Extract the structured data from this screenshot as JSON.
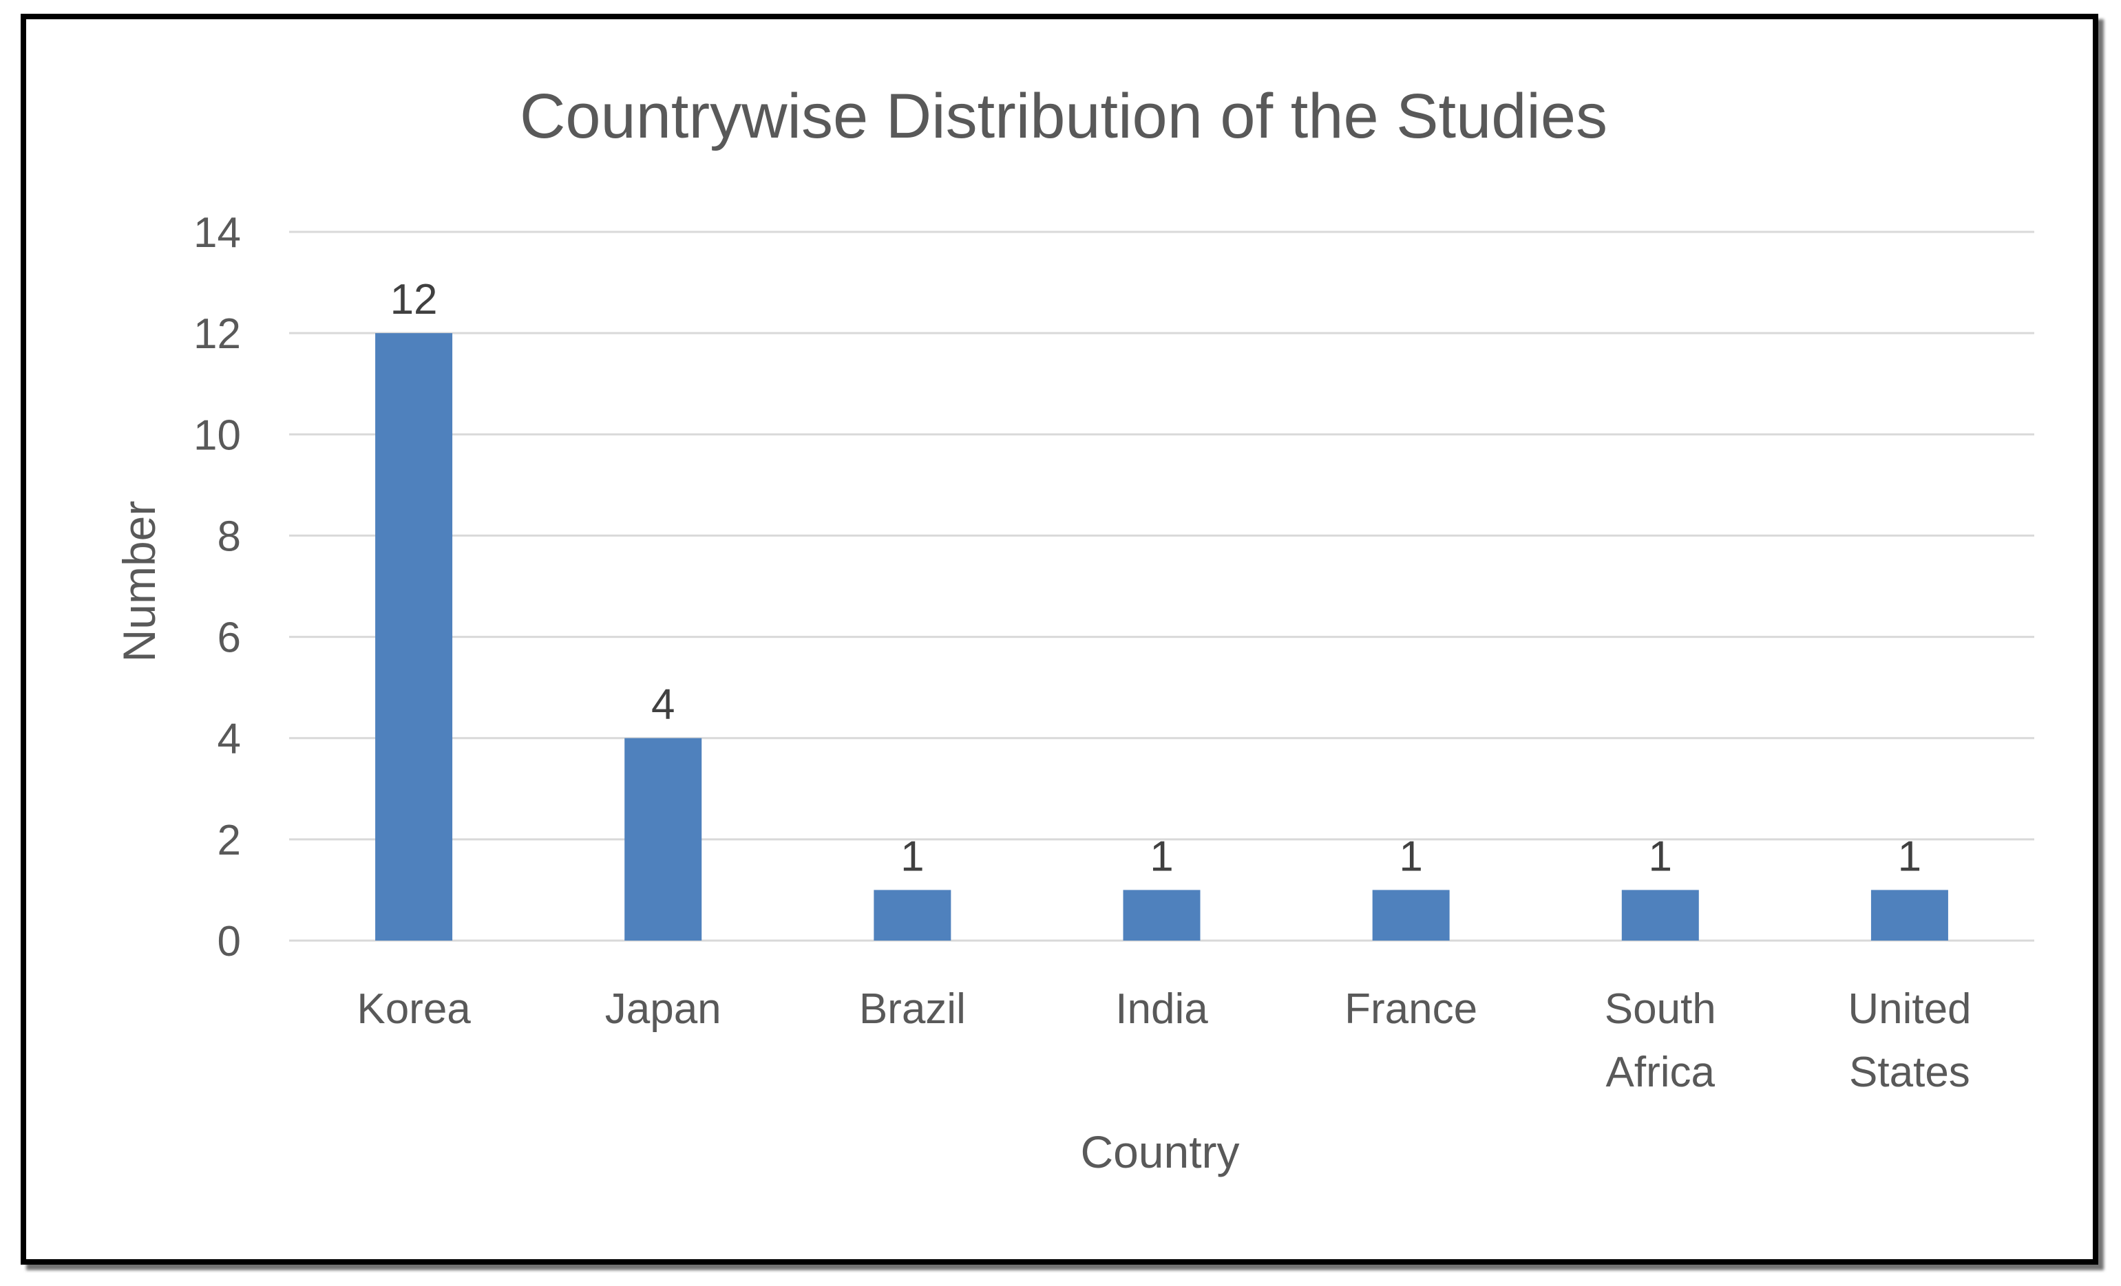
{
  "chart_data": {
    "type": "bar",
    "title": "Countrywise Distribution of the Studies",
    "xlabel": "Country",
    "ylabel": "Number",
    "categories": [
      "Korea",
      "Japan",
      "Brazil",
      "India",
      "France",
      "South Africa",
      "United States"
    ],
    "category_lines": [
      [
        "Korea"
      ],
      [
        "Japan"
      ],
      [
        "Brazil"
      ],
      [
        "India"
      ],
      [
        "France"
      ],
      [
        "South",
        "Africa"
      ],
      [
        "United",
        "States"
      ]
    ],
    "values": [
      12,
      4,
      1,
      1,
      1,
      1,
      1
    ],
    "data_labels": [
      "12",
      "4",
      "1",
      "1",
      "1",
      "1",
      "1"
    ],
    "ylim": [
      0,
      14
    ],
    "yticks": [
      0,
      2,
      4,
      6,
      8,
      10,
      12,
      14
    ],
    "grid": true,
    "legend": "none",
    "bar_color": "#4f81bd"
  }
}
